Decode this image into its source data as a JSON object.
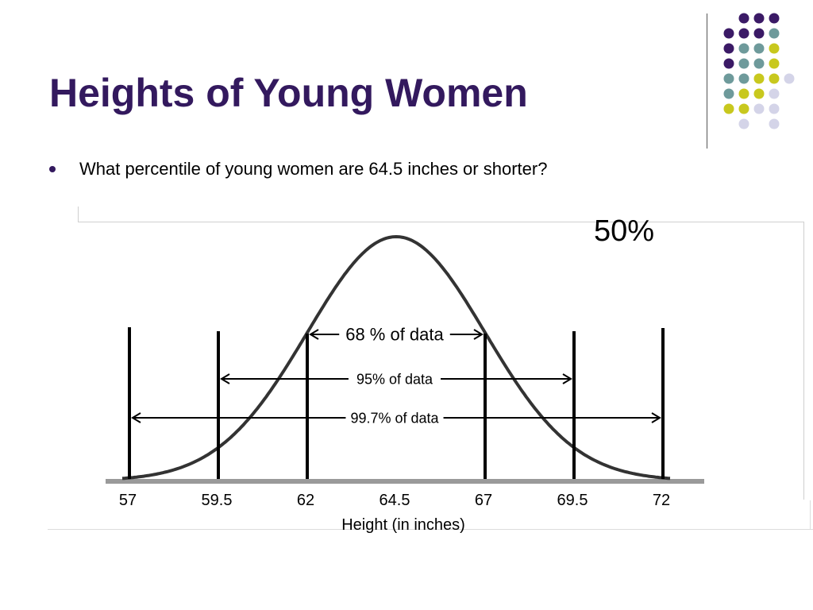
{
  "slide": {
    "title": "Heights of Young Women",
    "bullet": "What percentile of young women are 64.5 inches or shorter?",
    "answer": "50%"
  },
  "decoration": {
    "dot_colors": [
      "#3b1a66",
      "#6e9a9b",
      "#c8c81e",
      "#d4d4e8"
    ]
  },
  "chart_data": {
    "type": "line",
    "title": "",
    "xlabel": "Height (in inches)",
    "ylabel": "",
    "distribution": "normal",
    "mean": 64.5,
    "sd": 2.5,
    "xlim": [
      56,
      73
    ],
    "x_ticks": [
      "57",
      "59.5",
      "62",
      "64.5",
      "67",
      "69.5",
      "72"
    ],
    "boundaries": [
      57,
      59.5,
      62,
      67,
      69.5,
      72
    ],
    "intervals": [
      {
        "label": "68 % of data",
        "from": 62,
        "to": 67
      },
      {
        "label": "95% of data",
        "from": 59.5,
        "to": 69.5
      },
      {
        "label": "99.7% of data",
        "from": 57,
        "to": 72
      }
    ]
  }
}
